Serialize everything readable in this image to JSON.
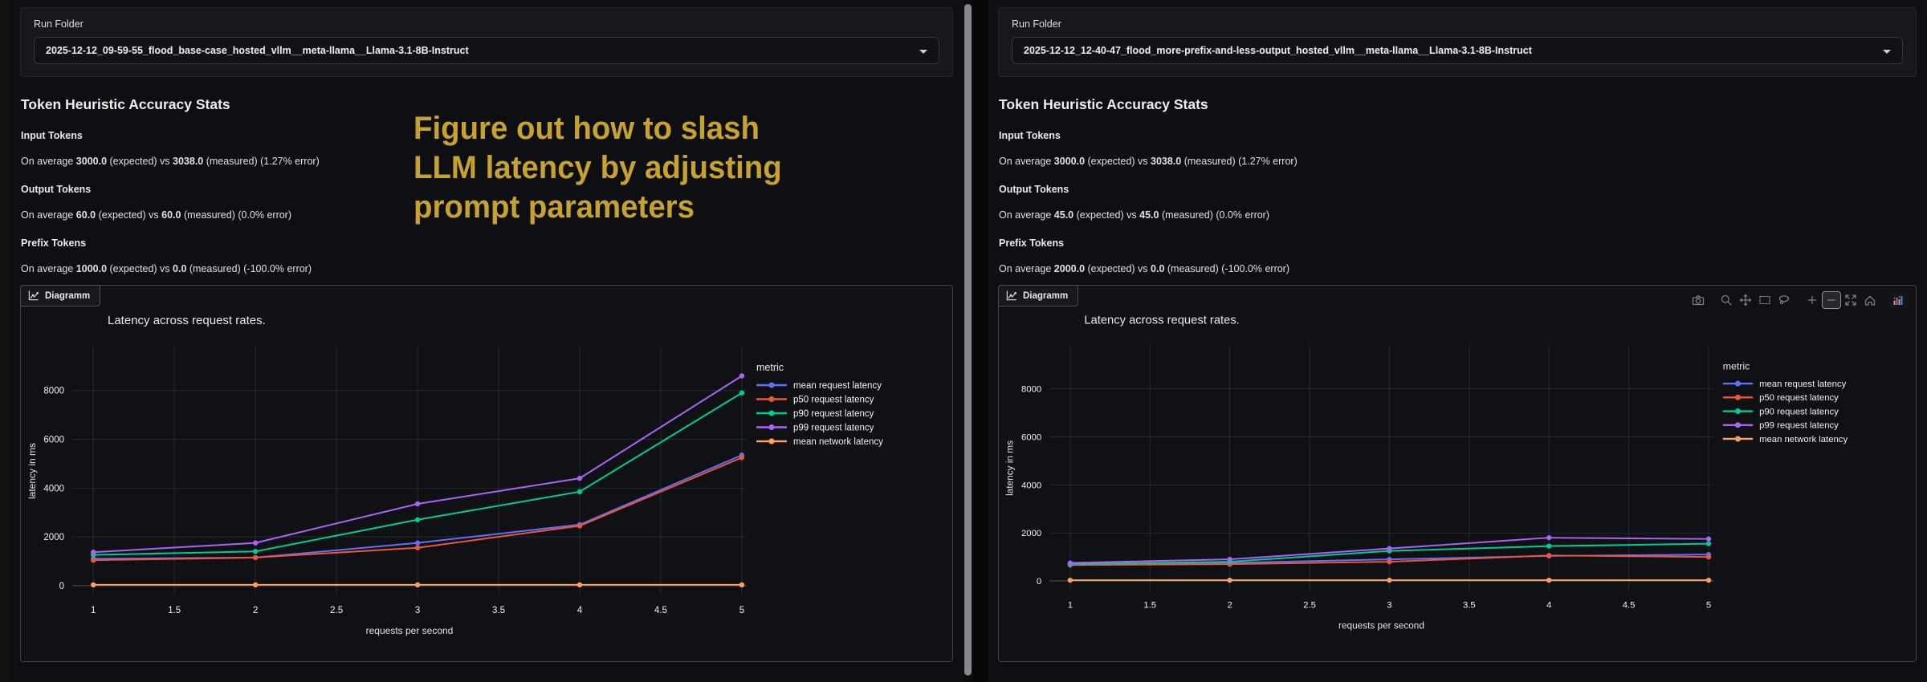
{
  "overlay": {
    "color": "#c8a22f",
    "lines": [
      "Figure out how to slash",
      "LLM latency by adjusting",
      "prompt parameters"
    ]
  },
  "panels": [
    {
      "run_folder": {
        "label": "Run Folder",
        "value": "2025-12-12_09-59-55_flood_base-case_hosted_vllm__meta-llama__Llama-3.1-8B-Instruct"
      },
      "stats": {
        "title": "Token Heuristic Accuracy Stats",
        "items": [
          {
            "heading": "Input Tokens",
            "body": "On average **3000.0** (expected) vs **3038.0** (measured) (1.27% error)"
          },
          {
            "heading": "Output Tokens",
            "body": "On average **60.0** (expected) vs **60.0** (measured) (0.0% error)"
          },
          {
            "heading": "Prefix Tokens",
            "body": "On average **1000.0** (expected) vs **0.0** (measured) (-100.0% error)"
          }
        ]
      },
      "chart": {
        "tab_label": "Diagramm",
        "modebar": null
      }
    },
    {
      "run_folder": {
        "label": "Run Folder",
        "value": "2025-12-12_12-40-47_flood_more-prefix-and-less-output_hosted_vllm__meta-llama__Llama-3.1-8B-Instruct"
      },
      "stats": {
        "title": "Token Heuristic Accuracy Stats",
        "items": [
          {
            "heading": "Input Tokens",
            "body": "On average **3000.0** (expected) vs **3038.0** (measured) (1.27% error)"
          },
          {
            "heading": "Output Tokens",
            "body": "On average **45.0** (expected) vs **45.0** (measured) (0.0% error)"
          },
          {
            "heading": "Prefix Tokens",
            "body": "On average **2000.0** (expected) vs **0.0** (measured) (-100.0% error)"
          }
        ]
      },
      "chart": {
        "tab_label": "Diagramm",
        "modebar": {
          "icons": [
            "download-plot-camera-icon",
            "zoom-icon",
            "pan-icon",
            "box-select-icon",
            "lasso-select-icon",
            "zoom-in-icon",
            "zoom-out-icon",
            "autoscale-icon",
            "reset-axes-home-icon",
            "plotly-logo-icon"
          ],
          "groups_after": [
            "download-plot-camera-icon",
            "lasso-select-icon",
            "reset-axes-home-icon"
          ],
          "active": "zoom-out-icon"
        }
      }
    }
  ],
  "chart_data": [
    {
      "type": "line",
      "title": "Latency across request rates.",
      "xlabel": "requests per second",
      "ylabel": "latency in ms",
      "legend_title": "metric",
      "x": [
        1,
        2,
        3,
        4,
        5
      ],
      "xticks": [
        1,
        1.5,
        2,
        2.5,
        3,
        3.5,
        4,
        4.5,
        5
      ],
      "yticks": [
        0,
        2000,
        4000,
        6000,
        8000
      ],
      "xlim": [
        0.87,
        5.03
      ],
      "ylim": [
        -400,
        9800
      ],
      "grid": true,
      "legend_position": "right",
      "series": [
        {
          "name": "mean request latency",
          "color": "#636efa",
          "values": [
            1100,
            1150,
            1750,
            2500,
            5350
          ]
        },
        {
          "name": "p50 request latency",
          "color": "#ef553b",
          "values": [
            1040,
            1150,
            1550,
            2450,
            5250
          ]
        },
        {
          "name": "p90 request latency",
          "color": "#00cc96",
          "values": [
            1260,
            1400,
            2700,
            3850,
            7900
          ]
        },
        {
          "name": "p99 request latency",
          "color": "#ab63fa",
          "values": [
            1370,
            1750,
            3350,
            4400,
            8600
          ]
        },
        {
          "name": "mean network latency",
          "color": "#ffa15a",
          "values": [
            30,
            30,
            30,
            30,
            30
          ]
        }
      ]
    },
    {
      "type": "line",
      "title": "Latency across request rates.",
      "xlabel": "requests per second",
      "ylabel": "latency in ms",
      "legend_title": "metric",
      "x": [
        1,
        2,
        3,
        4,
        5
      ],
      "xticks": [
        1,
        1.5,
        2,
        2.5,
        3,
        3.5,
        4,
        4.5,
        5
      ],
      "yticks": [
        0,
        2000,
        4000,
        6000,
        8000
      ],
      "xlim": [
        0.87,
        5.03
      ],
      "ylim": [
        -400,
        9800
      ],
      "grid": true,
      "legend_position": "right",
      "series": [
        {
          "name": "mean request latency",
          "color": "#636efa",
          "values": [
            700,
            750,
            900,
            1040,
            1100
          ]
        },
        {
          "name": "p50 request latency",
          "color": "#ef553b",
          "values": [
            660,
            700,
            800,
            1060,
            1000
          ]
        },
        {
          "name": "p90 request latency",
          "color": "#00cc96",
          "values": [
            700,
            800,
            1250,
            1450,
            1550
          ]
        },
        {
          "name": "p99 request latency",
          "color": "#ab63fa",
          "values": [
            750,
            900,
            1350,
            1800,
            1750
          ]
        },
        {
          "name": "mean network latency",
          "color": "#ffa15a",
          "values": [
            30,
            30,
            30,
            30,
            30
          ]
        }
      ]
    }
  ]
}
